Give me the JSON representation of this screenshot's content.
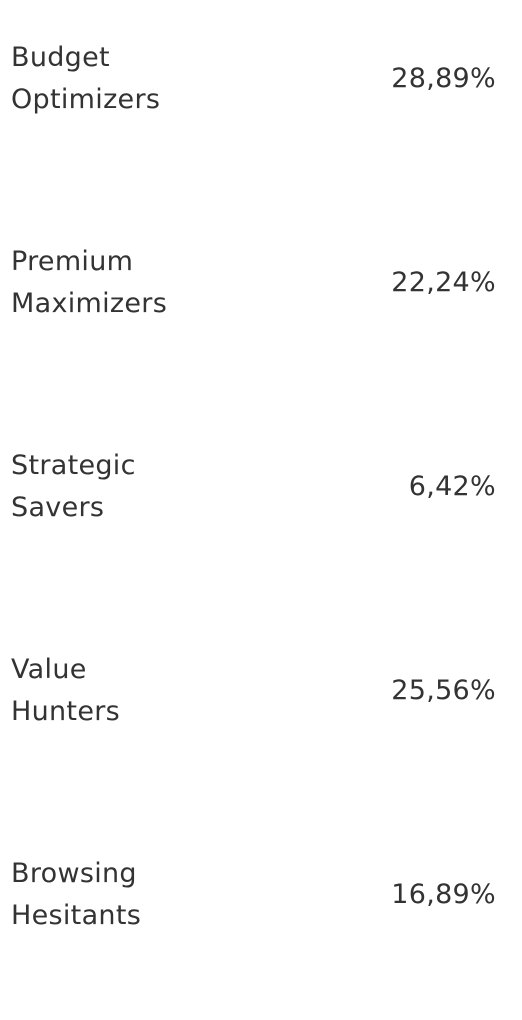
{
  "segments": [
    {
      "name_line1": "Budget",
      "name_line2": "Optimizers",
      "percent": "28,89%"
    },
    {
      "name_line1": "Premium",
      "name_line2": "Maximizers",
      "percent": "22,24%"
    },
    {
      "name_line1": "Strategic",
      "name_line2": "Savers",
      "percent": "6,42%"
    },
    {
      "name_line1": "Value",
      "name_line2": "Hunters",
      "percent": "25,56%"
    },
    {
      "name_line1": "Browsing",
      "name_line2": "Hesitants",
      "percent": "16,89%"
    }
  ],
  "colors": {
    "text": "#333333",
    "background": "#ffffff"
  }
}
